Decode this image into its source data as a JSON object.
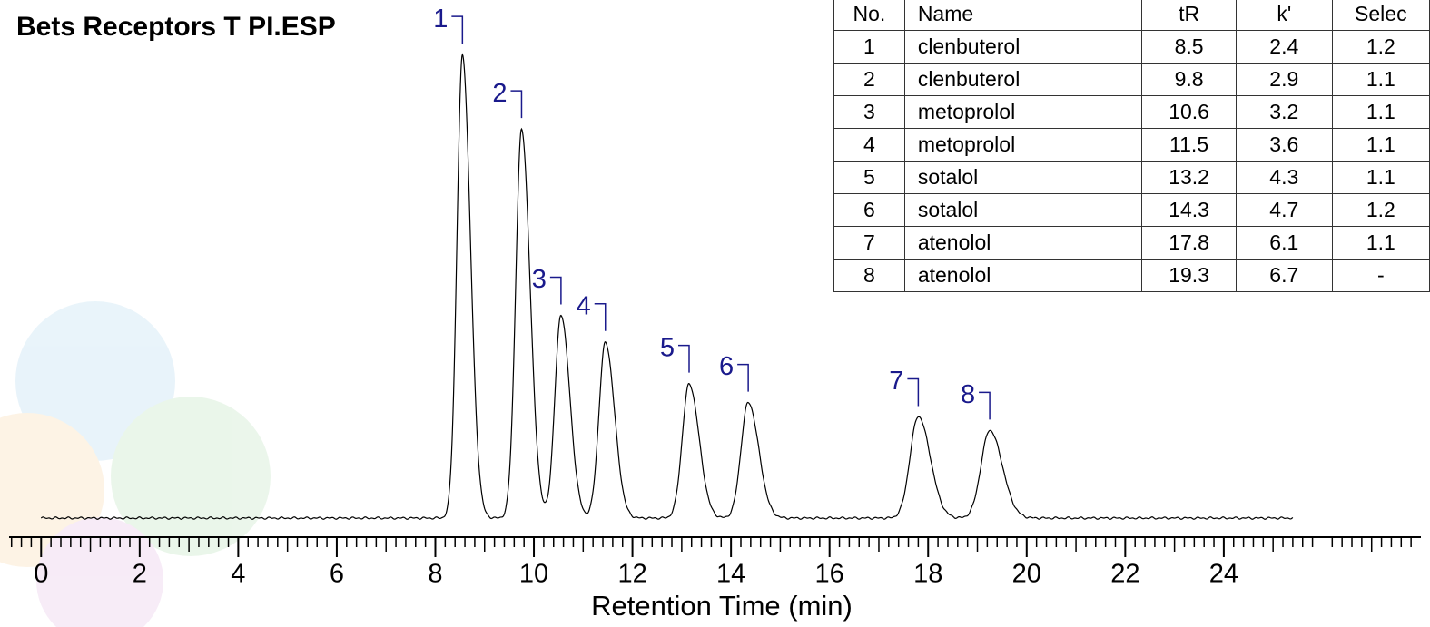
{
  "chart_data": {
    "type": "chromatogram",
    "title": "Bets Receptors T PI.ESP",
    "x_label": "Retention Time (min)",
    "peak_labels": [
      "1",
      "2",
      "3",
      "4",
      "5",
      "6",
      "7",
      "8"
    ],
    "x": [
      8.55,
      9.75,
      10.55,
      11.45,
      13.15,
      14.35,
      17.8,
      19.25
    ],
    "values": [
      100,
      84,
      44,
      38,
      29,
      25,
      22,
      19
    ],
    "color": "#000000",
    "label_color": "#1a1a8c",
    "xlim": [
      -0.65,
      28
    ],
    "xticks": [
      0,
      2,
      4,
      6,
      8,
      10,
      12,
      14,
      16,
      18,
      20,
      22,
      24
    ],
    "ylim": [
      0,
      112
    ]
  },
  "table": {
    "header": [
      "No.",
      "Name",
      "tR",
      "k'",
      "Selec"
    ],
    "rows": [
      [
        "1",
        "clenbuterol",
        "8.5",
        "2.4",
        "1.2"
      ],
      [
        "2",
        "clenbuterol",
        "9.8",
        "2.9",
        "1.1"
      ],
      [
        "3",
        "metoprolol",
        "10.6",
        "3.2",
        "1.1"
      ],
      [
        "4",
        "metoprolol",
        "11.5",
        "3.6",
        "1.1"
      ],
      [
        "5",
        "sotalol",
        "13.2",
        "4.3",
        "1.1"
      ],
      [
        "6",
        "sotalol",
        "14.3",
        "4.7",
        "1.2"
      ],
      [
        "7",
        "atenolol",
        "17.8",
        "6.1",
        "1.1"
      ],
      [
        "8",
        "atenolol",
        "19.3",
        "6.7",
        "-"
      ]
    ]
  }
}
